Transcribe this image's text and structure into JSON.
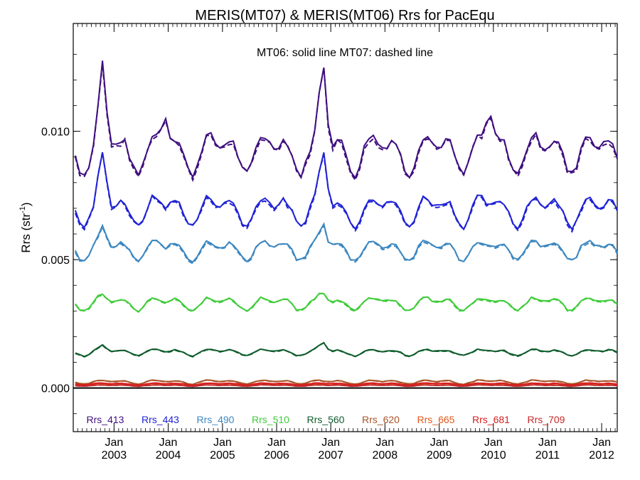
{
  "chart_data": {
    "type": "line",
    "title": "MERIS(MT07) & MERIS(MT06)  Rrs for PacEqu",
    "annotation": "MT06: solid line   MT07: dashed line",
    "ylabel": "Rrs (str",
    "ylabel_sup": "-1",
    "ylabel_close": ")",
    "ylim": [
      -0.0017,
      0.0142
    ],
    "xlim": [
      "2002-04-01",
      "2012-04-15"
    ],
    "y_ticks": [
      {
        "value": 0.0,
        "label": "0.000"
      },
      {
        "value": 0.005,
        "label": "0.005"
      },
      {
        "value": 0.01,
        "label": "0.010"
      }
    ],
    "x_ticks": [
      {
        "date": "2003-01-01",
        "month": "Jan",
        "year": "2003"
      },
      {
        "date": "2004-01-01",
        "month": "Jan",
        "year": "2004"
      },
      {
        "date": "2005-01-01",
        "month": "Jan",
        "year": "2005"
      },
      {
        "date": "2006-01-01",
        "month": "Jan",
        "year": "2006"
      },
      {
        "date": "2007-01-01",
        "month": "Jan",
        "year": "2007"
      },
      {
        "date": "2008-01-01",
        "month": "Jan",
        "year": "2008"
      },
      {
        "date": "2009-01-01",
        "month": "Jan",
        "year": "2009"
      },
      {
        "date": "2010-01-01",
        "month": "Jan",
        "year": "2010"
      },
      {
        "date": "2011-01-01",
        "month": "Jan",
        "year": "2011"
      },
      {
        "date": "2012-01-01",
        "month": "Jan",
        "year": "2012"
      }
    ],
    "zero_line": 0.0,
    "legend_placement": "bottom",
    "series": [
      {
        "name": "Rrs_413",
        "color": "#3f0f7f",
        "base": 0.0086,
        "amp": 0.0012,
        "peaks": [
          [
            "2002-10-15",
            0.0127
          ],
          [
            "2006-11-10",
            0.0129
          ],
          [
            "2003-12-10",
            0.011
          ],
          [
            "2009-12-10",
            0.011
          ]
        ]
      },
      {
        "name": "Rrs_443",
        "color": "#1f22d6",
        "base": 0.0065,
        "amp": 0.0009,
        "peaks": [
          [
            "2002-10-15",
            0.0092
          ],
          [
            "2006-11-10",
            0.0094
          ]
        ]
      },
      {
        "name": "Rrs_490",
        "color": "#3c87c0",
        "base": 0.0051,
        "amp": 0.0006,
        "peaks": [
          [
            "2002-10-15",
            0.0063
          ],
          [
            "2006-11-10",
            0.0065
          ]
        ]
      },
      {
        "name": "Rrs_510",
        "color": "#3fcc3a",
        "base": 0.0031,
        "amp": 0.0004,
        "peaks": [
          [
            "2002-10-15",
            0.0037
          ],
          [
            "2006-11-10",
            0.0038
          ]
        ]
      },
      {
        "name": "Rrs_560",
        "color": "#0f5c2c",
        "base": 0.0013,
        "amp": 0.0002,
        "peaks": [
          [
            "2002-10-15",
            0.0017
          ],
          [
            "2006-11-10",
            0.0018
          ]
        ]
      },
      {
        "name": "Rrs_620",
        "color": "#a8552a",
        "base": 0.00018,
        "amp": 0.00012,
        "peaks": []
      },
      {
        "name": "Rrs_665",
        "color": "#e0581a",
        "base": 0.00012,
        "amp": 6e-05,
        "peaks": []
      },
      {
        "name": "Rrs_681",
        "color": "#d81e1e",
        "base": 0.00013,
        "amp": 6e-05,
        "peaks": []
      },
      {
        "name": "Rrs_709",
        "color": "#c42a2a",
        "base": 8e-05,
        "amp": 4e-05,
        "peaks": []
      }
    ]
  }
}
